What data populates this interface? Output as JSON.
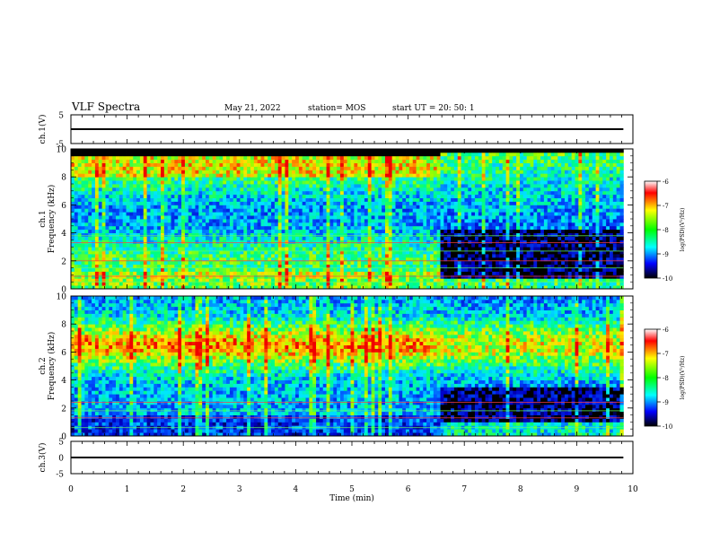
{
  "header": {
    "title": "VLF Spectra",
    "date": "May 21, 2022",
    "station": "station= MOS",
    "start": "start  UT  =   20: 50: 1"
  },
  "chart_data": [
    {
      "type": "line",
      "panel": "ch1-waveform",
      "ylabel": "ch.1(V)",
      "ylim": [
        -5,
        5
      ],
      "yticks": [
        "5",
        "-5"
      ],
      "xlim": [
        0,
        10
      ],
      "series": [
        {
          "x": [
            0,
            9.83
          ],
          "y": [
            0,
            0
          ]
        }
      ]
    },
    {
      "type": "heatmap",
      "panel": "ch1-spectrogram",
      "ylabel": "ch.1\nFrequency (kHz)",
      "ylim": [
        0,
        10
      ],
      "yticks": [
        "0",
        "2",
        "4",
        "6",
        "8",
        "10"
      ],
      "xlim": [
        0,
        10
      ],
      "data_end_min": 9.83,
      "colorbar": {
        "label": "log(PSD)(V²/Hz)",
        "range": [
          -10,
          -6
        ],
        "ticks": [
          "-6",
          "-7",
          "-8",
          "-9",
          "-10"
        ]
      },
      "segments": [
        {
          "t0": 0.0,
          "t1": 5.05,
          "level": "high",
          "top_khz": 9.5
        },
        {
          "t0": 5.05,
          "t1": 6.6,
          "level": "high",
          "top_khz": 9.5
        },
        {
          "t0": 6.6,
          "t1": 9.83,
          "level": "low",
          "top_khz": 9.7
        }
      ]
    },
    {
      "type": "heatmap",
      "panel": "ch2-spectrogram",
      "ylabel": "ch.2\nFrequency (kHz)",
      "ylim": [
        0,
        10
      ],
      "yticks": [
        "0",
        "2",
        "4",
        "6",
        "8",
        "10"
      ],
      "xlim": [
        0,
        10
      ],
      "data_end_min": 9.83,
      "colorbar": {
        "label": "log(PSD)(V²/Hz)",
        "range": [
          -10,
          -6
        ],
        "ticks": [
          "-6",
          "-7",
          "-8",
          "-9",
          "-10"
        ]
      },
      "segments": [
        {
          "t0": 0.0,
          "t1": 5.05,
          "level": "high",
          "top_khz": 10
        },
        {
          "t0": 5.05,
          "t1": 6.6,
          "level": "high",
          "top_khz": 10
        },
        {
          "t0": 6.6,
          "t1": 9.83,
          "level": "mid",
          "top_khz": 10
        }
      ]
    },
    {
      "type": "line",
      "panel": "ch3-waveform",
      "ylabel": "ch.3(V)",
      "ylim": [
        -5,
        5
      ],
      "yticks": [
        "5",
        "0",
        "-5"
      ],
      "xlim": [
        0,
        10
      ],
      "xlabel": "Time  (min)",
      "xticks": [
        "0",
        "1",
        "2",
        "3",
        "4",
        "5",
        "6",
        "7",
        "8",
        "9",
        "10"
      ],
      "series": [
        {
          "x": [
            0,
            9.83
          ],
          "y": [
            0,
            0
          ]
        }
      ]
    }
  ]
}
